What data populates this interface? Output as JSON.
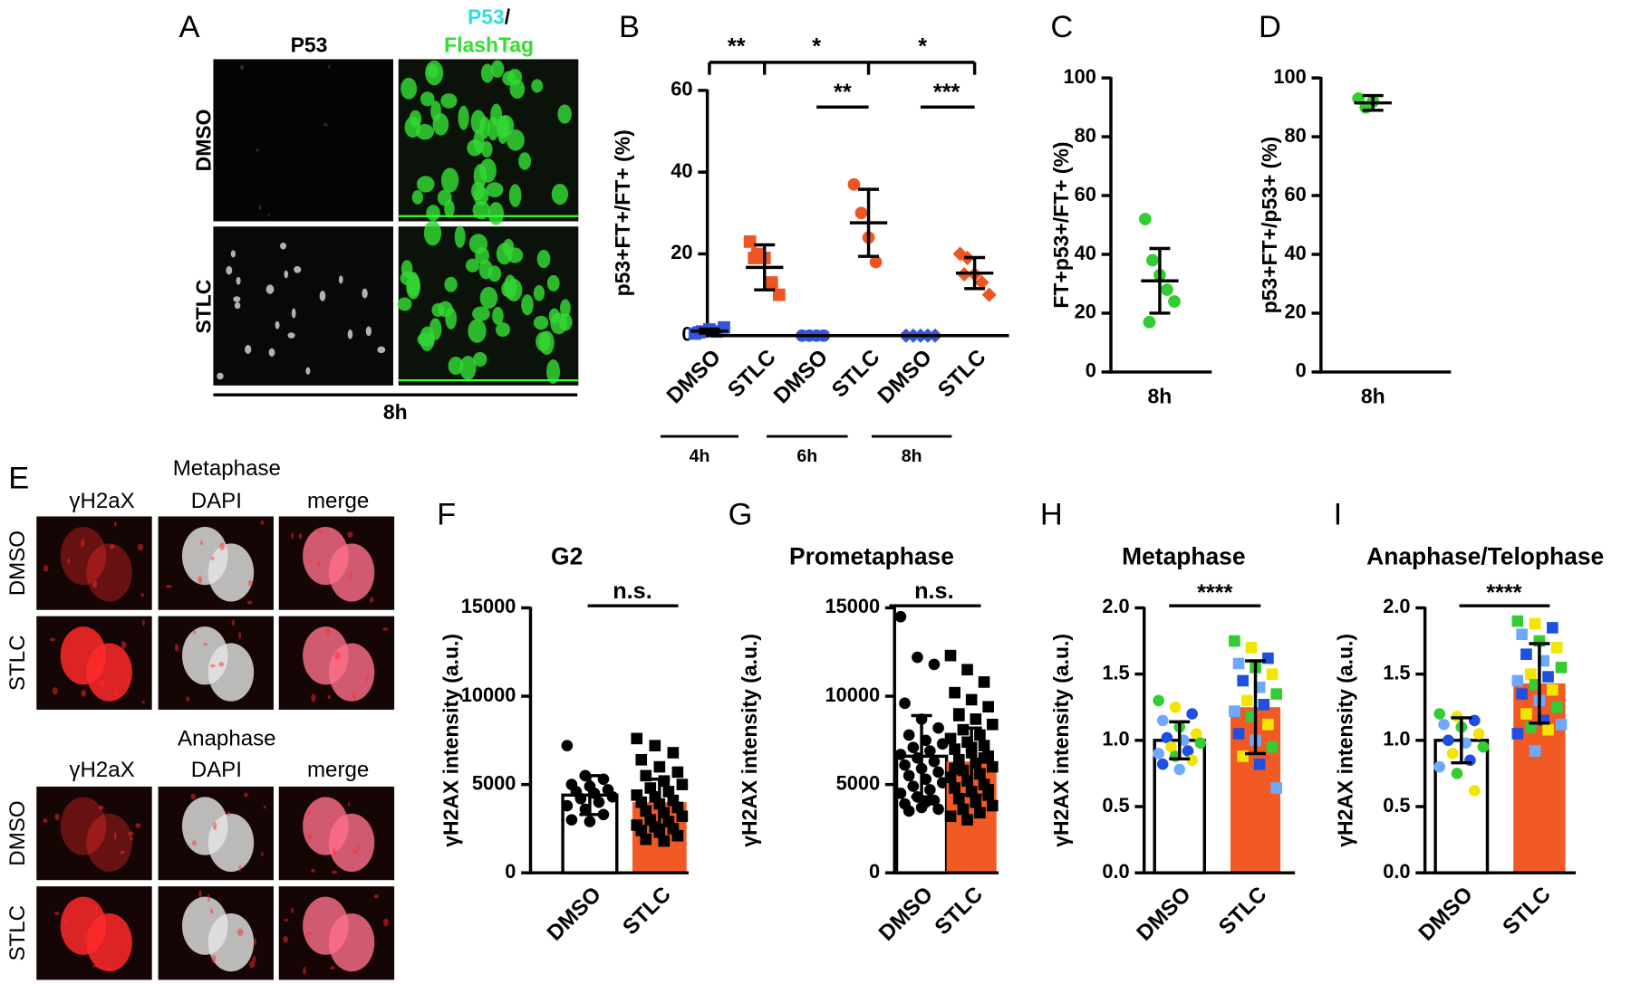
{
  "panel_labels": [
    "A",
    "B",
    "C",
    "D",
    "E",
    "F",
    "G",
    "H",
    "I"
  ],
  "panel_a": {
    "header_left": "P53",
    "header_right": [
      "P53",
      "/",
      "FlashTag"
    ],
    "rows": [
      "DMSO",
      "STLC"
    ],
    "footer": "8h"
  },
  "panel_e": {
    "metaphase": {
      "title": "Metaphase",
      "columns": [
        "γH2aX",
        "DAPI",
        "merge"
      ],
      "rows": [
        "DMSO",
        "STLC"
      ]
    },
    "anaphase": {
      "title": "Anaphase",
      "columns": [
        "γH2aX",
        "DAPI",
        "merge"
      ],
      "rows": [
        "DMSO",
        "STLC"
      ]
    }
  },
  "chart_data": [
    {
      "type": "dot",
      "ylabel": "p53+FT+/FT+  (%)",
      "categories": [
        "DMSO",
        "STLC",
        "DMSO",
        "STLC",
        "DMSO",
        "STLC"
      ],
      "groups": [
        "4h",
        "6h",
        "8h"
      ],
      "ylim": [
        0,
        60
      ],
      "yticks": [
        0,
        20,
        40,
        60
      ],
      "points": [
        [
          0.5,
          1,
          1.5,
          1,
          2,
          0.8
        ],
        [
          23,
          20,
          19,
          13,
          10,
          19
        ],
        [
          0,
          0,
          0,
          0
        ],
        [
          37,
          30,
          24,
          18
        ],
        [
          0,
          0,
          0,
          0,
          0
        ],
        [
          20,
          19,
          15,
          13,
          10,
          15
        ]
      ],
      "mean": [
        1.1,
        16.7,
        0,
        27.6,
        0,
        15.3
      ],
      "sd": [
        0.5,
        5.5,
        0,
        8.2,
        0,
        3.8
      ],
      "colors": [
        "#3355dd",
        "#ee5522",
        "#3355dd",
        "#ee5522",
        "#3355dd",
        "#ee5522"
      ],
      "markers": [
        "square",
        "square",
        "circle",
        "circle",
        "diamond",
        "diamond"
      ],
      "annotations": [
        "**",
        "*",
        "*",
        "**",
        "***"
      ]
    },
    {
      "type": "dot",
      "ylabel": "FT+p53+/FT+ (%)",
      "categories": [
        "8h"
      ],
      "ylim": [
        0,
        100
      ],
      "yticks": [
        0,
        20,
        40,
        60,
        80,
        100
      ],
      "points": [
        [
          52,
          38,
          33,
          28,
          24,
          17
        ]
      ],
      "mean": [
        31
      ],
      "sd": [
        11
      ],
      "colors": [
        "#33cc33"
      ],
      "markers": [
        "circle"
      ]
    },
    {
      "type": "dot",
      "ylabel": "p53+FT+/p53+ (%)",
      "categories": [
        "8h"
      ],
      "ylim": [
        0,
        100
      ],
      "yticks": [
        0,
        20,
        40,
        60,
        80,
        100
      ],
      "points": [
        [
          93,
          90,
          92
        ]
      ],
      "mean": [
        91.5
      ],
      "sd": [
        2.5
      ],
      "colors": [
        "#33cc33"
      ],
      "markers": [
        "circle"
      ]
    },
    {
      "type": "bar",
      "title": "G2",
      "ylabel": "γH2AX intensity (a.u.)",
      "categories": [
        "DMSO",
        "STLC"
      ],
      "ylim": [
        0,
        15000
      ],
      "yticks": [
        0,
        5000,
        10000,
        15000
      ],
      "points": [
        [
          7200,
          5500,
          5300,
          5000,
          4900,
          4700,
          4600,
          4500,
          4300,
          4200,
          4000,
          3800,
          3600,
          3300,
          3000,
          2900
        ],
        [
          7600,
          7200,
          6800,
          6400,
          6000,
          5700,
          5500,
          5200,
          5000,
          4800,
          4600,
          4400,
          4300,
          4100,
          4000,
          3900,
          3700,
          3500,
          3400,
          3200,
          3000,
          2900,
          2700,
          2600,
          2500,
          2400,
          2300,
          2100,
          1900,
          1800
        ]
      ],
      "mean": [
        4400,
        4000
      ],
      "sd": [
        1100,
        1300
      ],
      "bar_colors": [
        "#ffffff",
        "#f15a24"
      ],
      "colors": [
        "#000000",
        "#000000"
      ],
      "markers": [
        "circle",
        "square"
      ],
      "annotations": [
        "n.s."
      ]
    },
    {
      "type": "bar",
      "title": "Prometaphase",
      "ylabel": "γH2AX intensity (a.u.)",
      "categories": [
        "DMSO",
        "STLC"
      ],
      "ylim": [
        0,
        15000
      ],
      "yticks": [
        0,
        5000,
        10000,
        15000
      ],
      "points": [
        [
          14500,
          12200,
          11800,
          9600,
          8700,
          8200,
          7800,
          7500,
          7300,
          7100,
          6900,
          6700,
          6500,
          6300,
          6100,
          5900,
          5700,
          5500,
          5300,
          5100,
          4900,
          4700,
          4500,
          4300,
          4100,
          3900,
          3700,
          3600,
          3500,
          4000
        ],
        [
          12300,
          11500,
          10800,
          10200,
          9800,
          9400,
          9000,
          8700,
          8400,
          8100,
          7800,
          7600,
          7400,
          7200,
          7000,
          6800,
          6600,
          6400,
          6200,
          6000,
          5800,
          5600,
          5400,
          5200,
          5000,
          4800,
          4600,
          4400,
          4200,
          4000,
          3800,
          3600,
          3400,
          3200,
          3000,
          6500,
          5900,
          7100,
          4700,
          8900
        ]
      ],
      "mean": [
        6600,
        6300
      ],
      "sd": [
        2300,
        1900
      ],
      "bar_colors": [
        "#ffffff",
        "#f15a24"
      ],
      "colors": [
        "#000000",
        "#000000"
      ],
      "markers": [
        "circle",
        "square"
      ],
      "annotations": [
        "n.s."
      ]
    },
    {
      "type": "bar",
      "title": "Metaphase",
      "ylabel": "γH2AX intensity (a.u.)",
      "categories": [
        "DMSO",
        "STLC"
      ],
      "ylim": [
        0,
        2
      ],
      "yticks": [
        {
          "value": 0,
          "label": "0.0"
        },
        0.5,
        {
          "value": 1,
          "label": "1.0"
        },
        1.5,
        {
          "value": 2,
          "label": "2.0"
        }
      ],
      "points": [
        [
          1.3,
          1.25,
          1.2,
          1.15,
          1.1,
          1.05,
          1.02,
          1.0,
          0.98,
          0.95,
          0.92,
          0.9,
          0.88,
          0.85,
          0.82,
          0.78
        ],
        [
          1.75,
          1.7,
          1.62,
          1.58,
          1.55,
          1.5,
          1.45,
          1.4,
          1.35,
          1.3,
          1.27,
          1.22,
          1.18,
          1.12,
          1.05,
          1.0,
          0.95,
          0.88,
          0.82,
          0.64
        ]
      ],
      "mean": [
        1.0,
        1.25
      ],
      "sd": [
        0.14,
        0.35
      ],
      "bar_colors": [
        "#ffffff",
        "#f15a24"
      ],
      "palette": [
        "#33cc33",
        "#f2e600",
        "#1f4fe0",
        "#6fa8ff"
      ],
      "markers": [
        "circle",
        "square"
      ],
      "annotations": [
        "****"
      ]
    },
    {
      "type": "bar",
      "title": "Anaphase/Telophase",
      "ylabel": "γH2AX intensity (a.u.)",
      "categories": [
        "DMSO",
        "STLC"
      ],
      "ylim": [
        0,
        2
      ],
      "yticks": [
        {
          "value": 0,
          "label": "0.0"
        },
        0.5,
        {
          "value": 1,
          "label": "1.0"
        },
        1.5,
        {
          "value": 2,
          "label": "2.0"
        }
      ],
      "points": [
        [
          1.2,
          1.18,
          1.15,
          1.12,
          1.1,
          1.05,
          1.0,
          0.98,
          0.95,
          0.9,
          0.85,
          0.8,
          0.75,
          0.62
        ],
        [
          1.9,
          1.88,
          1.85,
          1.8,
          1.75,
          1.7,
          1.65,
          1.6,
          1.55,
          1.5,
          1.48,
          1.45,
          1.42,
          1.38,
          1.35,
          1.3,
          1.25,
          1.2,
          1.15,
          1.12,
          1.1,
          1.08,
          1.05,
          0.92
        ]
      ],
      "mean": [
        1.0,
        1.43
      ],
      "sd": [
        0.17,
        0.3
      ],
      "bar_colors": [
        "#ffffff",
        "#f15a24"
      ],
      "palette": [
        "#33cc33",
        "#f2e600",
        "#1f4fe0",
        "#6fa8ff"
      ],
      "markers": [
        "circle",
        "square"
      ],
      "annotations": [
        "****"
      ]
    }
  ]
}
